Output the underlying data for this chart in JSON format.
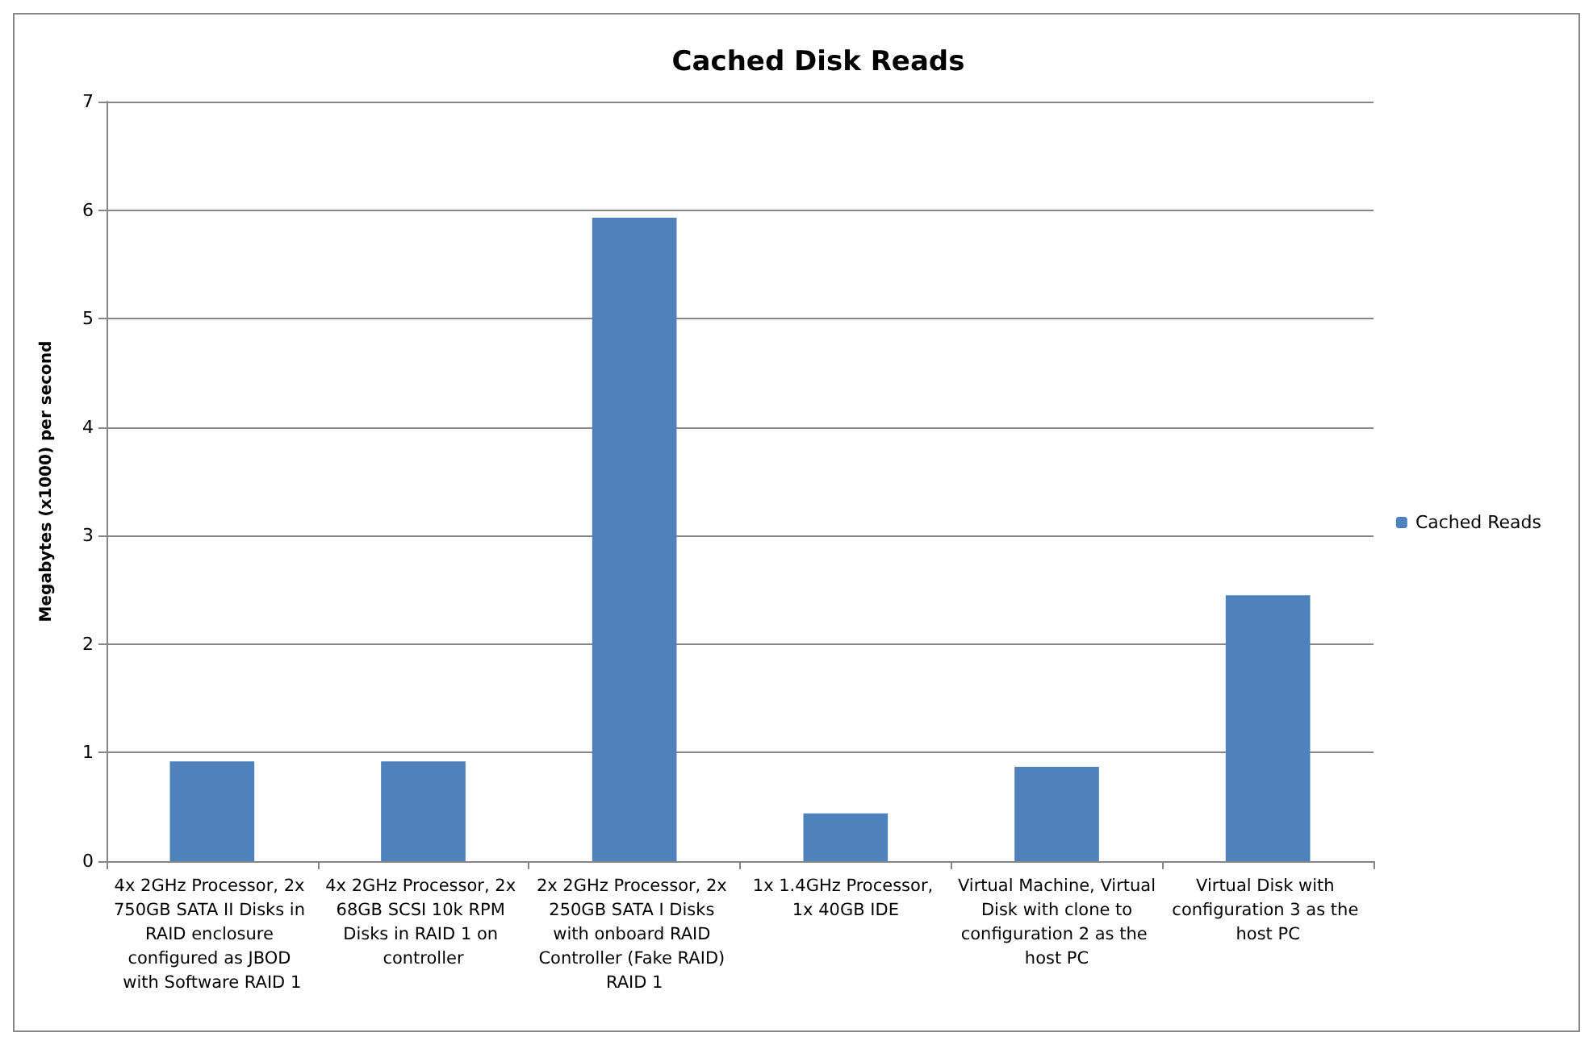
{
  "chart_data": {
    "type": "bar",
    "title": "Cached Disk Reads",
    "ylabel": "Megabytes (x1000) per second",
    "categories": [
      "4x 2GHz Processor, 2x 750GB SATA II Disks in RAID enclosure configured as JBOD with Software RAID 1",
      "4x 2GHz Processor, 2x 68GB SCSI 10k RPM Disks in RAID 1 on controller",
      "2x 2GHz Processor, 2x 250GB SATA I Disks with onboard RAID Controller (Fake RAID) RAID 1",
      "1x 1.4GHz Processor, 1x 40GB IDE",
      "Virtual Machine, Virtual Disk with clone to configuration 2 as the host PC",
      "Virtual Disk with configuration 3 as the host PC"
    ],
    "series": [
      {
        "name": "Cached Reads",
        "color": "#4f81bd",
        "values": [
          0.92,
          0.92,
          5.93,
          0.44,
          0.87,
          2.45
        ]
      }
    ],
    "ylim": [
      0,
      7
    ],
    "yticks": [
      0,
      1,
      2,
      3,
      4,
      5,
      6,
      7
    ],
    "grid": "y",
    "legend": "right"
  }
}
